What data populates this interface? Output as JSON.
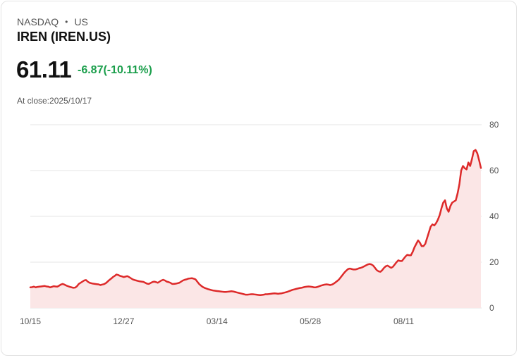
{
  "header": {
    "exchange": "NASDAQ",
    "market": "US",
    "separator": "•",
    "title": "IREN (IREN.US)",
    "price": "61.11",
    "change": "-6.87(-10.11%)",
    "close_label": "At close:2025/10/17"
  },
  "colors": {
    "line": "#dd2a2a",
    "area_fill": "#fbe6e6",
    "change_text": "#1a9e4b",
    "grid": "#e6e6e6"
  },
  "chart_data": {
    "type": "area",
    "title": "IREN (IREN.US)",
    "xlabel": "",
    "ylabel": "",
    "ylim": [
      0,
      80
    ],
    "y_ticks": [
      0,
      20,
      40,
      60,
      80
    ],
    "x_tick_labels": [
      "10/15",
      "12/27",
      "03/14",
      "05/28",
      "08/11"
    ],
    "x_tick_index": [
      0,
      52,
      104,
      156,
      208
    ],
    "grid": true,
    "series": [
      {
        "name": "IREN",
        "values": [
          9.0,
          9.1,
          9.3,
          9.0,
          9.2,
          9.3,
          9.4,
          9.5,
          9.6,
          9.4,
          9.3,
          9.0,
          9.2,
          9.5,
          9.4,
          9.3,
          9.7,
          10.2,
          10.5,
          10.2,
          9.8,
          9.5,
          9.2,
          9.0,
          8.8,
          8.9,
          9.5,
          10.5,
          11.0,
          11.5,
          12.0,
          12.2,
          11.5,
          11.0,
          10.8,
          10.6,
          10.5,
          10.4,
          10.3,
          10.0,
          10.2,
          10.4,
          10.8,
          11.5,
          12.2,
          12.8,
          13.5,
          14.0,
          14.6,
          14.4,
          14.0,
          13.8,
          13.5,
          13.7,
          13.9,
          13.5,
          13.0,
          12.5,
          12.2,
          12.0,
          11.8,
          11.6,
          11.5,
          11.4,
          11.0,
          10.6,
          10.5,
          10.9,
          11.3,
          11.5,
          11.3,
          11.0,
          11.5,
          12.0,
          12.3,
          12.0,
          11.5,
          11.3,
          11.0,
          10.5,
          10.5,
          10.6,
          10.8,
          11.0,
          11.5,
          12.0,
          12.3,
          12.5,
          12.8,
          12.9,
          13.0,
          12.8,
          12.5,
          11.5,
          10.5,
          9.8,
          9.2,
          8.8,
          8.5,
          8.2,
          8.0,
          7.8,
          7.6,
          7.5,
          7.4,
          7.3,
          7.2,
          7.1,
          7.0,
          7.0,
          7.1,
          7.2,
          7.3,
          7.2,
          7.0,
          6.8,
          6.6,
          6.4,
          6.2,
          6.0,
          5.8,
          5.8,
          5.9,
          6.0,
          6.0,
          5.9,
          5.8,
          5.7,
          5.6,
          5.7,
          5.8,
          6.0,
          6.0,
          6.1,
          6.2,
          6.3,
          6.4,
          6.3,
          6.2,
          6.3,
          6.4,
          6.6,
          6.8,
          7.0,
          7.3,
          7.6,
          7.9,
          8.1,
          8.3,
          8.5,
          8.7,
          8.8,
          9.0,
          9.2,
          9.3,
          9.4,
          9.3,
          9.2,
          9.0,
          9.0,
          9.2,
          9.5,
          9.8,
          10.0,
          10.2,
          10.3,
          10.2,
          10.0,
          10.2,
          10.6,
          11.2,
          11.8,
          12.5,
          13.5,
          14.5,
          15.5,
          16.3,
          17.0,
          17.2,
          17.0,
          16.8,
          16.8,
          17.0,
          17.3,
          17.5,
          17.8,
          18.2,
          18.6,
          19.0,
          19.2,
          19.0,
          18.5,
          17.5,
          16.5,
          16.0,
          15.8,
          16.5,
          17.5,
          18.2,
          18.5,
          18.0,
          17.5,
          18.0,
          19.0,
          20.0,
          20.8,
          20.5,
          20.5,
          21.5,
          22.5,
          23.2,
          23.0,
          23.0,
          24.5,
          26.5,
          28.0,
          29.5,
          28.5,
          27.0,
          27.0,
          28.0,
          30.5,
          33.0,
          35.5,
          36.5,
          36.0,
          37.0,
          38.5,
          40.5,
          43.5,
          46.0,
          47.0,
          43.5,
          42.0,
          44.5,
          46.0,
          46.5,
          47.0,
          50.0,
          54.0,
          60.0,
          62.0,
          61.0,
          60.5,
          63.5,
          62.0,
          65.0,
          68.5,
          69.0,
          67.5,
          64.5,
          61.11
        ]
      }
    ]
  }
}
